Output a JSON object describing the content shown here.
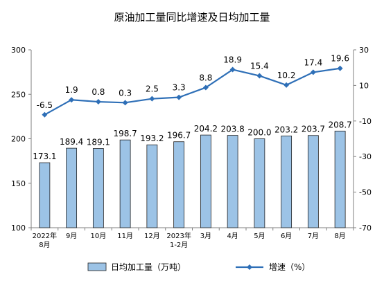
{
  "chart_data": {
    "type": "bar+line",
    "title": "原油加工量同比增速及日均加工量",
    "categories": [
      [
        "2022年",
        "8月"
      ],
      [
        "9月"
      ],
      [
        "10月"
      ],
      [
        "11月"
      ],
      [
        "12月"
      ],
      [
        "2023年",
        "1-2月"
      ],
      [
        "3月"
      ],
      [
        "4月"
      ],
      [
        "5月"
      ],
      [
        "6月"
      ],
      [
        "7月"
      ],
      [
        "8月"
      ]
    ],
    "series": [
      {
        "name": "日均加工量（万吨）",
        "type": "bar",
        "axis": "left",
        "color": "#9cc3e6",
        "values": [
          173.1,
          189.4,
          189.1,
          198.7,
          193.2,
          196.7,
          204.2,
          203.8,
          200.0,
          203.2,
          203.7,
          208.7
        ],
        "labels": [
          "173.1",
          "189.4",
          "189.1",
          "198.7",
          "193.2",
          "196.7",
          "204.2",
          "203.8",
          "200.0",
          "203.2",
          "203.7",
          "208.7"
        ]
      },
      {
        "name": "增速（%）",
        "type": "line",
        "axis": "right",
        "color": "#2e6fb7",
        "values": [
          -6.5,
          1.9,
          0.8,
          0.3,
          2.5,
          3.3,
          8.8,
          18.9,
          15.4,
          10.2,
          17.4,
          19.6
        ],
        "labels": [
          "-6.5",
          "1.9",
          "0.8",
          "0.3",
          "2.5",
          "3.3",
          "8.8",
          "18.9",
          "15.4",
          "10.2",
          "17.4",
          "19.6"
        ]
      }
    ],
    "left_axis": {
      "min": 100,
      "max": 300,
      "ticks": [
        "100",
        "150",
        "200",
        "250",
        "300"
      ]
    },
    "right_axis": {
      "min": -70,
      "max": 30,
      "ticks": [
        "-70",
        "-50",
        "-30",
        "-10",
        "10",
        "30"
      ]
    },
    "grid": false,
    "legend_position": "bottom"
  }
}
